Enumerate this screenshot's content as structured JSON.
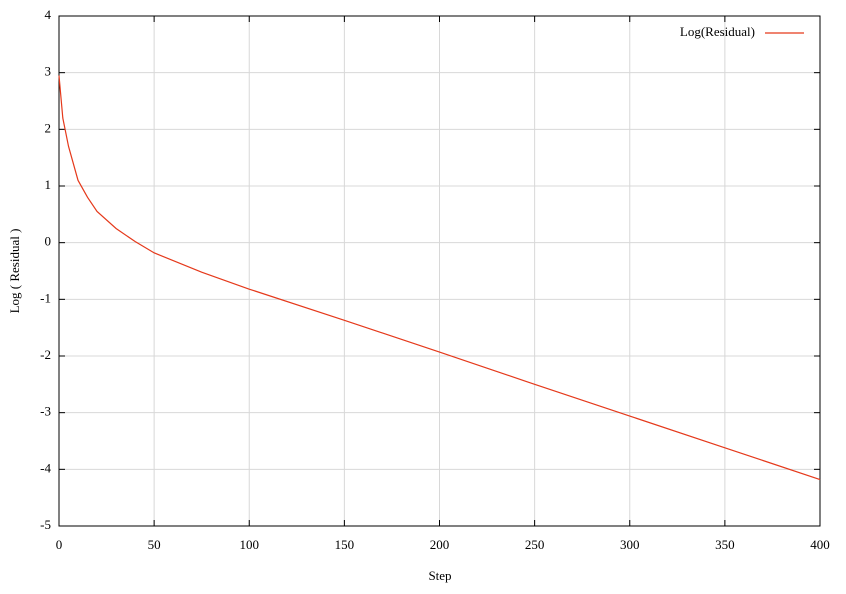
{
  "chart_data": {
    "type": "line",
    "x_label": "Step",
    "y_label": "Log ( Residual )",
    "x": [
      0,
      2,
      5,
      10,
      15,
      20,
      30,
      40,
      50,
      75,
      100,
      150,
      200,
      250,
      300,
      350,
      400
    ],
    "series": [
      {
        "name": "Log(Residual)",
        "color": "#e5391b",
        "values": [
          2.95,
          2.2,
          1.7,
          1.1,
          0.8,
          0.55,
          0.25,
          0.02,
          -0.18,
          -0.52,
          -0.82,
          -1.37,
          -1.93,
          -2.5,
          -3.06,
          -3.62,
          -4.18
        ]
      }
    ],
    "xlim": [
      0,
      400
    ],
    "xticks": [
      0,
      50,
      100,
      150,
      200,
      250,
      300,
      350,
      400
    ],
    "ylim": [
      -5,
      4
    ],
    "yticks": [
      -5,
      -4,
      -3,
      -2,
      -1,
      0,
      1,
      2,
      3,
      4
    ],
    "grid": true,
    "legend": "top-right"
  }
}
